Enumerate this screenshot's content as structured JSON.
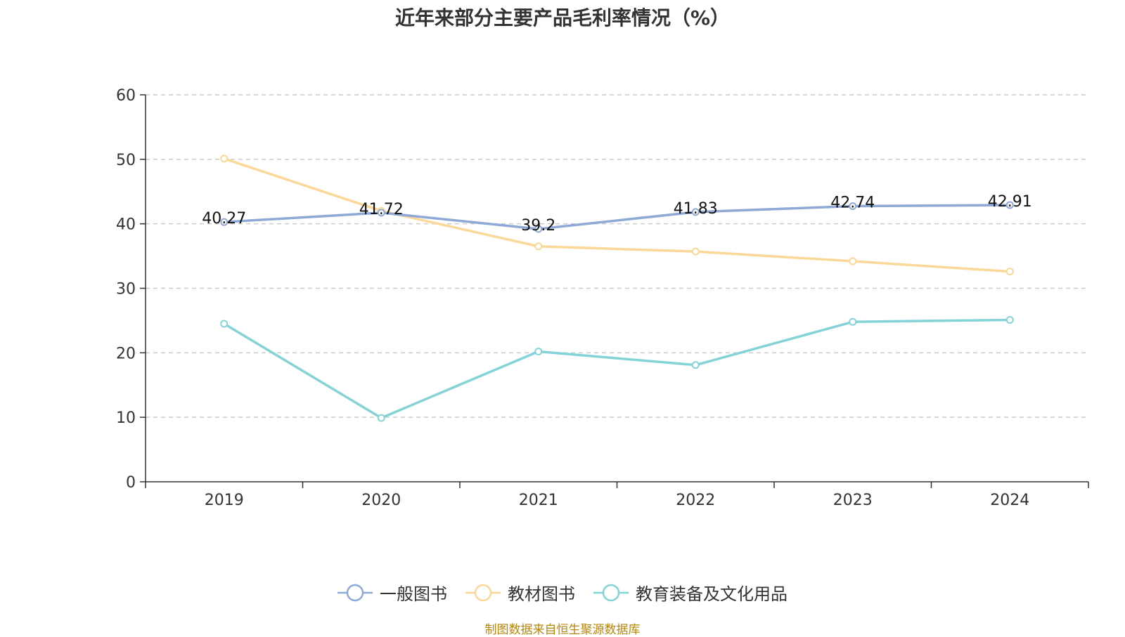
{
  "title": "近年来部分主要产品毛利率情况（%）",
  "footer": "制图数据来自恒生聚源数据库",
  "chart_data": {
    "type": "line",
    "categories": [
      "2019",
      "2020",
      "2021",
      "2022",
      "2023",
      "2024"
    ],
    "ylim": [
      0,
      60
    ],
    "yticks": [
      0,
      10,
      20,
      30,
      40,
      50,
      60
    ],
    "grid": true,
    "legend_position": "bottom",
    "series": [
      {
        "name": "一般图书",
        "color": "#8fa9d6",
        "values": [
          40.27,
          41.72,
          39.2,
          41.83,
          42.74,
          42.91
        ],
        "show_labels": true
      },
      {
        "name": "教材图书",
        "color": "#fbd898",
        "values": [
          50.1,
          42.0,
          36.5,
          35.7,
          34.2,
          32.6
        ],
        "show_labels": false
      },
      {
        "name": "教育装备及文化用品",
        "color": "#84d3d6",
        "values": [
          24.5,
          9.9,
          20.2,
          18.1,
          24.8,
          25.1
        ],
        "show_labels": false
      }
    ]
  }
}
